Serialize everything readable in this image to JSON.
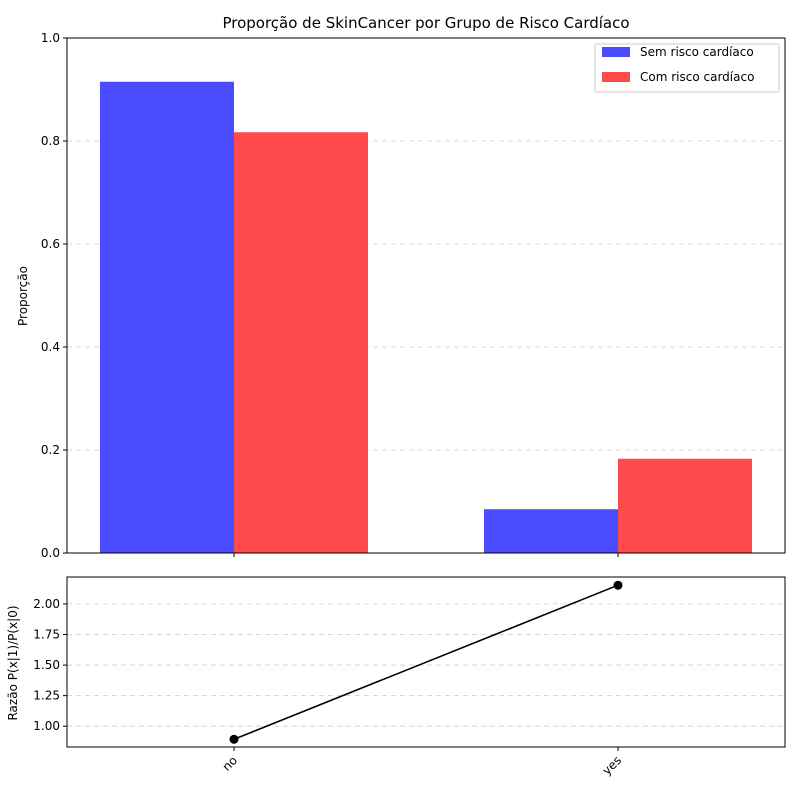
{
  "chart_data": [
    {
      "type": "bar",
      "title": "Proporção de SkinCancer por Grupo de Risco Cardíaco",
      "ylabel": "Proporção",
      "xlabel": "",
      "categories": [
        "no",
        "yes"
      ],
      "series": [
        {
          "name": "Sem risco cardíaco",
          "values": [
            0.915,
            0.085
          ],
          "color": "#4b4bff"
        },
        {
          "name": "Com risco cardíaco",
          "values": [
            0.817,
            0.183
          ],
          "color": "#ff4b4b"
        }
      ],
      "ylim": [
        0,
        1.0
      ],
      "yticks": [
        "0.0",
        "0.2",
        "0.4",
        "0.6",
        "0.8",
        "1.0"
      ],
      "grid": "y-dashed",
      "legend": "top-right"
    },
    {
      "type": "line",
      "ylabel": "Razão P(x|1)/P(x|0)",
      "xlabel": "",
      "categories": [
        "no",
        "yes"
      ],
      "values": [
        0.893,
        2.153
      ],
      "color": "#000000",
      "ylim": [
        0.83,
        2.22
      ],
      "yticks": [
        "1.00",
        "1.25",
        "1.50",
        "1.75",
        "2.00"
      ],
      "grid": "y-dashed",
      "xtick_rotation": 45
    }
  ]
}
